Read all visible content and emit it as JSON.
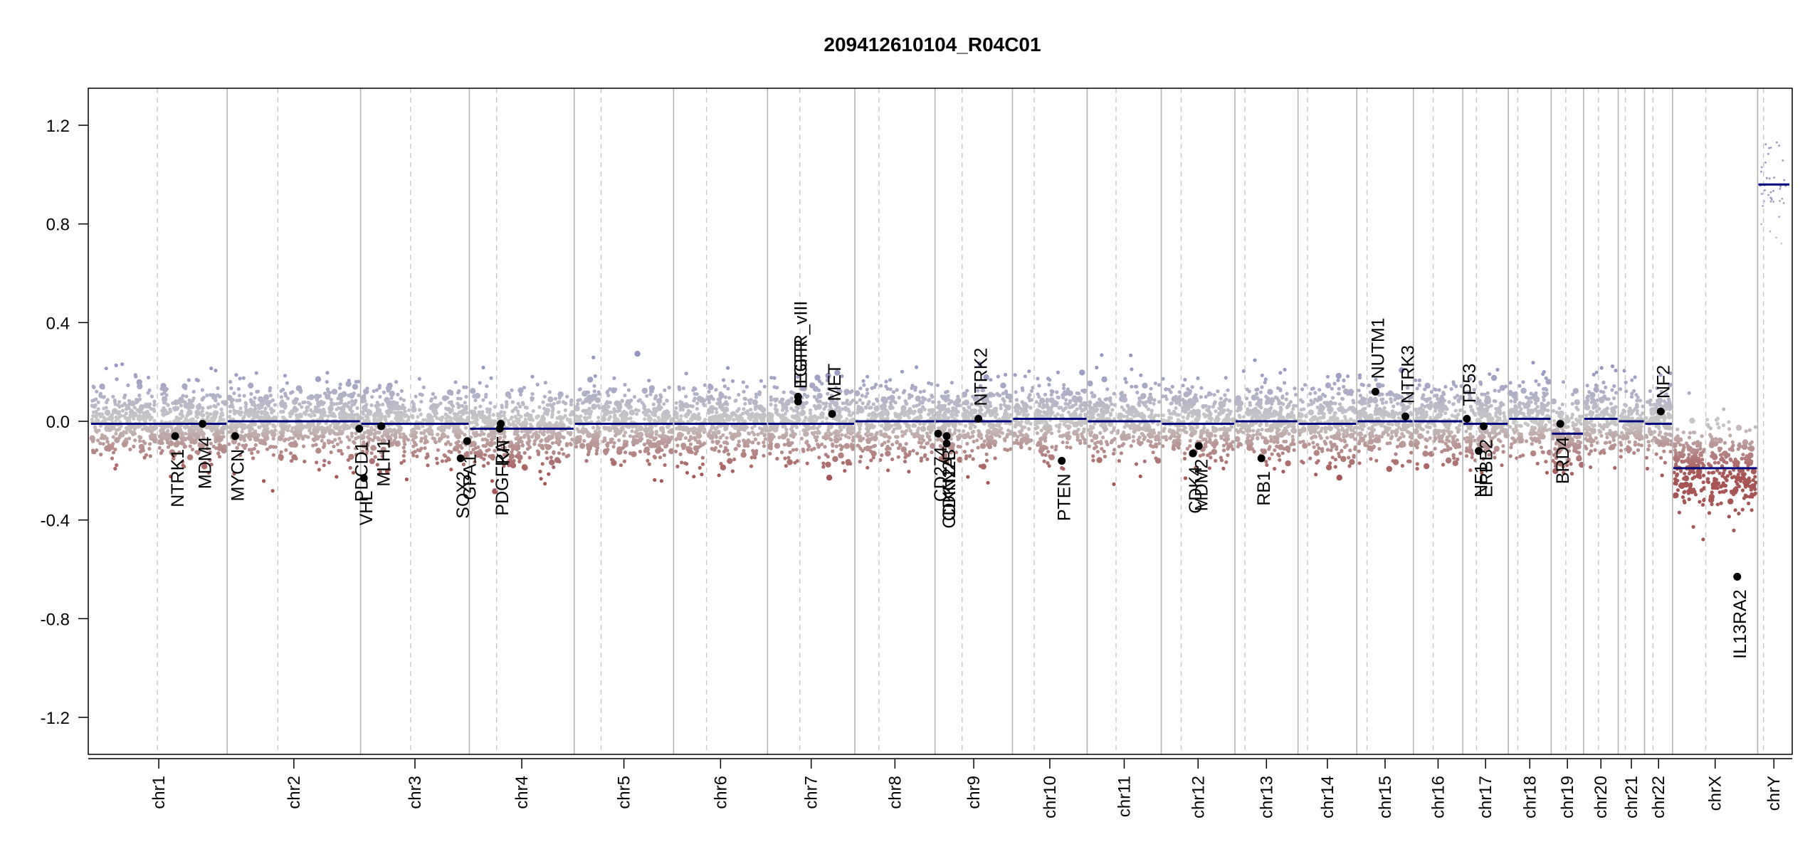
{
  "chart_data": {
    "type": "scatter",
    "title": "209412610104_R04C01",
    "xlabel": "",
    "ylabel": "",
    "ylim": [
      -1.35,
      1.35
    ],
    "y_ticks": [
      "-1.2",
      "-0.8",
      "-0.4",
      "0.0",
      "0.4",
      "0.8",
      "1.2"
    ],
    "y_tick_values": [
      -1.2,
      -0.8,
      -0.4,
      0.0,
      0.4,
      0.8,
      1.2
    ],
    "grid": false,
    "colors": {
      "gain": "#9a9ac2",
      "neutral": "#c8c8c8",
      "loss": "#a75a5a",
      "segment": "#00007f",
      "gene_point": "#000000",
      "chrom_border": "#b4b4b4",
      "centromere": "#c8c8c8"
    },
    "chromosomes": [
      {
        "name": "chr1",
        "rel_length": 249,
        "cent": 0.49,
        "seg": [
          -0.01
        ]
      },
      {
        "name": "chr2",
        "rel_length": 243,
        "cent": 0.38,
        "seg": [
          0.0
        ]
      },
      {
        "name": "chr3",
        "rel_length": 198,
        "cent": 0.46,
        "seg": [
          -0.01
        ]
      },
      {
        "name": "chr4",
        "rel_length": 191,
        "cent": 0.26,
        "seg": [
          -0.03
        ]
      },
      {
        "name": "chr5",
        "rel_length": 181,
        "cent": 0.27,
        "seg": [
          -0.01
        ]
      },
      {
        "name": "chr6",
        "rel_length": 171,
        "cent": 0.35,
        "seg": [
          -0.01
        ]
      },
      {
        "name": "chr7",
        "rel_length": 159,
        "cent": 0.37,
        "seg": [
          -0.01
        ]
      },
      {
        "name": "chr8",
        "rel_length": 146,
        "cent": 0.3,
        "seg": [
          0.0
        ]
      },
      {
        "name": "chr9",
        "rel_length": 141,
        "cent": 0.35,
        "seg": [
          0.0
        ]
      },
      {
        "name": "chr10",
        "rel_length": 136,
        "cent": 0.29,
        "seg": [
          0.01
        ]
      },
      {
        "name": "chr11",
        "rel_length": 135,
        "cent": 0.39,
        "seg": [
          0.0
        ]
      },
      {
        "name": "chr12",
        "rel_length": 134,
        "cent": 0.27,
        "seg": [
          -0.01
        ]
      },
      {
        "name": "chr13",
        "rel_length": 115,
        "cent": 0.16,
        "seg": [
          0.0
        ]
      },
      {
        "name": "chr14",
        "rel_length": 107,
        "cent": 0.16,
        "seg": [
          -0.01
        ]
      },
      {
        "name": "chr15",
        "rel_length": 103,
        "cent": 0.18,
        "seg": [
          0.0
        ]
      },
      {
        "name": "chr16",
        "rel_length": 90,
        "cent": 0.4,
        "seg": [
          0.0
        ]
      },
      {
        "name": "chr17",
        "rel_length": 83,
        "cent": 0.3,
        "seg": [
          -0.01
        ]
      },
      {
        "name": "chr18",
        "rel_length": 78,
        "cent": 0.22,
        "seg": [
          0.01
        ]
      },
      {
        "name": "chr19",
        "rel_length": 59,
        "cent": 0.45,
        "seg": [
          -0.05
        ]
      },
      {
        "name": "chr20",
        "rel_length": 63,
        "cent": 0.43,
        "seg": [
          0.01
        ]
      },
      {
        "name": "chr21",
        "rel_length": 48,
        "cent": 0.27,
        "seg": [
          0.0
        ]
      },
      {
        "name": "chr22",
        "rel_length": 51,
        "cent": 0.3,
        "seg": [
          -0.01
        ]
      },
      {
        "name": "chrX",
        "rel_length": 155,
        "cent": 0.39,
        "seg": [
          -0.19
        ]
      },
      {
        "name": "chrY",
        "rel_length": 59,
        "cent": 0.18,
        "seg": [
          0.96
        ]
      }
    ],
    "genes": [
      {
        "name": "NTRK1",
        "chr": "chr1",
        "pos": 0.62,
        "value": -0.06,
        "label_side": "below"
      },
      {
        "name": "MDM4",
        "chr": "chr1",
        "pos": 0.82,
        "value": -0.01,
        "label_side": "below"
      },
      {
        "name": "MYCN",
        "chr": "chr2",
        "pos": 0.06,
        "value": -0.06,
        "label_side": "below"
      },
      {
        "name": "PDCD1",
        "chr": "chr2",
        "pos": 0.99,
        "value": -0.03,
        "label_side": "below"
      },
      {
        "name": "VHL",
        "chr": "chr3",
        "pos": 0.03,
        "value": -0.23,
        "label_side": "below"
      },
      {
        "name": "MLH1",
        "chr": "chr3",
        "pos": 0.19,
        "value": -0.02,
        "label_side": "below"
      },
      {
        "name": "SOX2",
        "chr": "chr3",
        "pos": 0.92,
        "value": -0.15,
        "label_side": "below"
      },
      {
        "name": "GPA1",
        "chr": "chr3",
        "pos": 0.98,
        "value": -0.08,
        "label_side": "below"
      },
      {
        "name": "PDGFRA",
        "chr": "chr4",
        "pos": 0.29,
        "value": -0.03,
        "label_side": "below"
      },
      {
        "name": "KIT",
        "chr": "chr4",
        "pos": 0.3,
        "value": -0.01,
        "label_side": "below"
      },
      {
        "name": "EGFR",
        "chr": "chr7",
        "pos": 0.35,
        "value": 0.08,
        "label_side": "above"
      },
      {
        "name": "EGFR_vIII",
        "chr": "chr7",
        "pos": 0.35,
        "value": 0.1,
        "label_side": "above"
      },
      {
        "name": "MET",
        "chr": "chr7",
        "pos": 0.74,
        "value": 0.03,
        "label_side": "above"
      },
      {
        "name": "CD274",
        "chr": "chr9",
        "pos": 0.04,
        "value": -0.05,
        "label_side": "below"
      },
      {
        "name": "CDKN2A",
        "chr": "chr9",
        "pos": 0.15,
        "value": -0.09,
        "label_side": "below"
      },
      {
        "name": "CDKN2B",
        "chr": "chr9",
        "pos": 0.15,
        "value": -0.06,
        "label_side": "below"
      },
      {
        "name": "NTRK2",
        "chr": "chr9",
        "pos": 0.56,
        "value": 0.01,
        "label_side": "above"
      },
      {
        "name": "PTEN",
        "chr": "chr10",
        "pos": 0.66,
        "value": -0.16,
        "label_side": "below"
      },
      {
        "name": "CDK4",
        "chr": "chr12",
        "pos": 0.43,
        "value": -0.13,
        "label_side": "below"
      },
      {
        "name": "MDM2",
        "chr": "chr12",
        "pos": 0.51,
        "value": -0.1,
        "label_side": "below"
      },
      {
        "name": "RB1",
        "chr": "chr13",
        "pos": 0.42,
        "value": -0.15,
        "label_side": "below"
      },
      {
        "name": "NUTM1",
        "chr": "chr15",
        "pos": 0.33,
        "value": 0.12,
        "label_side": "above"
      },
      {
        "name": "NTRK3",
        "chr": "chr15",
        "pos": 0.86,
        "value": 0.02,
        "label_side": "above"
      },
      {
        "name": "TP53",
        "chr": "chr17",
        "pos": 0.09,
        "value": 0.01,
        "label_side": "above"
      },
      {
        "name": "NF1",
        "chr": "chr17",
        "pos": 0.35,
        "value": -0.12,
        "label_side": "below"
      },
      {
        "name": "ERBB2",
        "chr": "chr17",
        "pos": 0.46,
        "value": -0.02,
        "label_side": "below"
      },
      {
        "name": "BRD4",
        "chr": "chr19",
        "pos": 0.28,
        "value": -0.01,
        "label_side": "below"
      },
      {
        "name": "NF2",
        "chr": "chr22",
        "pos": 0.58,
        "value": 0.04,
        "label_side": "above"
      },
      {
        "name": "IL13RA2",
        "chr": "chrX",
        "pos": 0.76,
        "value": -0.63,
        "label_side": "below"
      }
    ]
  }
}
